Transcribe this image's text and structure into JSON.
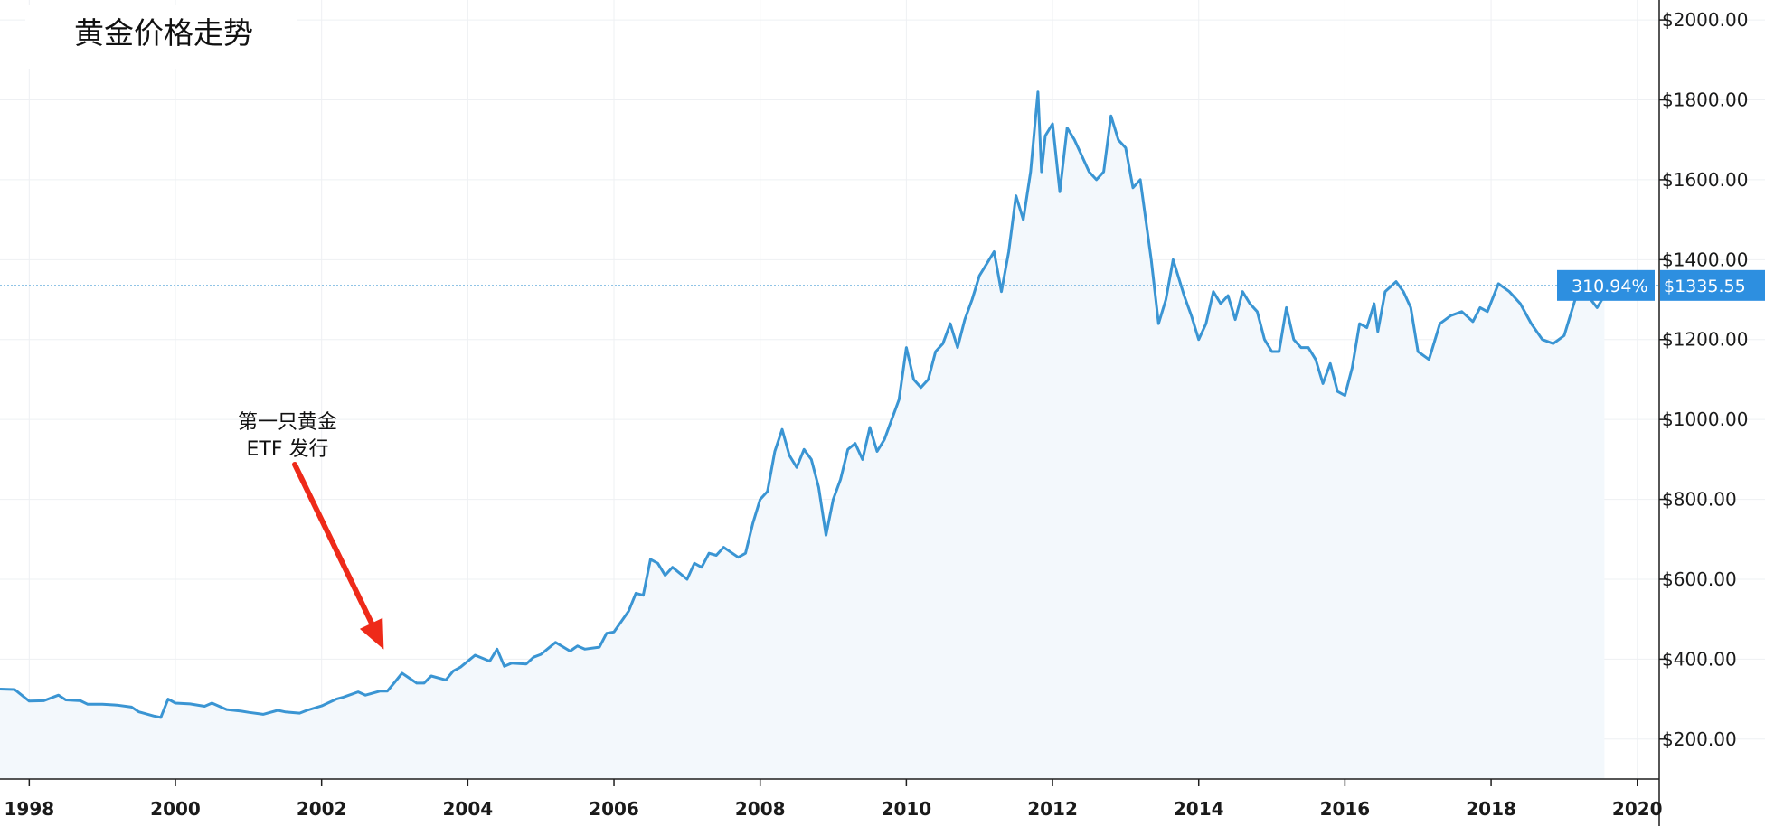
{
  "chart_data": {
    "type": "line",
    "title": "黄金价格走势",
    "xlabel": "",
    "ylabel": "",
    "x_ticks": [
      "1998",
      "2000",
      "2002",
      "2004",
      "2006",
      "2008",
      "2010",
      "2012",
      "2014",
      "2016",
      "2018",
      "2020"
    ],
    "y_ticks": [
      "$200.00",
      "$400.00",
      "$600.00",
      "$800.00",
      "$1000.00",
      "$1200.00",
      "$1400.00",
      "$1600.00",
      "$1800.00",
      "$2000.00"
    ],
    "xlim": [
      1997.6,
      2020.3
    ],
    "ylim": [
      100,
      2050
    ],
    "grid": true,
    "current": {
      "value": 1335.55,
      "value_label": "$1335.55",
      "change_label": "310.94%"
    },
    "annotation": {
      "text_line1": "第一只黄金",
      "text_line2": "ETF 发行",
      "x": 2002.9,
      "y": 370
    },
    "colors": {
      "line": "#3a95d3",
      "fill": "#f3f8fc",
      "badge": "#2d8fe0",
      "arrow": "#ee2a19"
    },
    "series": [
      {
        "values": [
          [
            1997.6,
            325
          ],
          [
            1997.8,
            324
          ],
          [
            1998.0,
            295
          ],
          [
            1998.2,
            296
          ],
          [
            1998.4,
            310
          ],
          [
            1998.5,
            298
          ],
          [
            1998.7,
            296
          ],
          [
            1998.8,
            287
          ],
          [
            1999.0,
            287
          ],
          [
            1999.2,
            285
          ],
          [
            1999.4,
            280
          ],
          [
            1999.5,
            268
          ],
          [
            1999.7,
            258
          ],
          [
            1999.8,
            254
          ],
          [
            1999.9,
            300
          ],
          [
            2000.0,
            290
          ],
          [
            2000.2,
            288
          ],
          [
            2000.4,
            282
          ],
          [
            2000.5,
            290
          ],
          [
            2000.7,
            274
          ],
          [
            2000.9,
            270
          ],
          [
            2001.0,
            267
          ],
          [
            2001.2,
            262
          ],
          [
            2001.4,
            272
          ],
          [
            2001.5,
            268
          ],
          [
            2001.7,
            265
          ],
          [
            2001.8,
            272
          ],
          [
            2002.0,
            283
          ],
          [
            2002.2,
            300
          ],
          [
            2002.3,
            305
          ],
          [
            2002.5,
            318
          ],
          [
            2002.6,
            310
          ],
          [
            2002.8,
            320
          ],
          [
            2002.9,
            320
          ],
          [
            2003.0,
            342
          ],
          [
            2003.1,
            365
          ],
          [
            2003.3,
            340
          ],
          [
            2003.4,
            340
          ],
          [
            2003.5,
            358
          ],
          [
            2003.7,
            348
          ],
          [
            2003.8,
            370
          ],
          [
            2003.9,
            380
          ],
          [
            2004.0,
            395
          ],
          [
            2004.1,
            410
          ],
          [
            2004.3,
            395
          ],
          [
            2004.4,
            425
          ],
          [
            2004.5,
            382
          ],
          [
            2004.6,
            390
          ],
          [
            2004.8,
            388
          ],
          [
            2004.9,
            405
          ],
          [
            2005.0,
            412
          ],
          [
            2005.2,
            442
          ],
          [
            2005.4,
            420
          ],
          [
            2005.5,
            433
          ],
          [
            2005.6,
            425
          ],
          [
            2005.8,
            430
          ],
          [
            2005.9,
            465
          ],
          [
            2006.0,
            468
          ],
          [
            2006.2,
            520
          ],
          [
            2006.3,
            565
          ],
          [
            2006.4,
            560
          ],
          [
            2006.5,
            650
          ],
          [
            2006.6,
            640
          ],
          [
            2006.7,
            610
          ],
          [
            2006.8,
            630
          ],
          [
            2006.9,
            615
          ],
          [
            2007.0,
            600
          ],
          [
            2007.1,
            640
          ],
          [
            2007.2,
            630
          ],
          [
            2007.3,
            665
          ],
          [
            2007.4,
            660
          ],
          [
            2007.5,
            680
          ],
          [
            2007.7,
            655
          ],
          [
            2007.8,
            665
          ],
          [
            2007.9,
            740
          ],
          [
            2008.0,
            800
          ],
          [
            2008.1,
            820
          ],
          [
            2008.2,
            920
          ],
          [
            2008.3,
            975
          ],
          [
            2008.4,
            910
          ],
          [
            2008.5,
            880
          ],
          [
            2008.6,
            925
          ],
          [
            2008.7,
            900
          ],
          [
            2008.8,
            830
          ],
          [
            2008.9,
            710
          ],
          [
            2009.0,
            800
          ],
          [
            2009.1,
            850
          ],
          [
            2009.2,
            925
          ],
          [
            2009.3,
            940
          ],
          [
            2009.4,
            900
          ],
          [
            2009.5,
            980
          ],
          [
            2009.6,
            920
          ],
          [
            2009.7,
            950
          ],
          [
            2009.8,
            1000
          ],
          [
            2009.9,
            1050
          ],
          [
            2010.0,
            1180
          ],
          [
            2010.1,
            1100
          ],
          [
            2010.2,
            1080
          ],
          [
            2010.3,
            1100
          ],
          [
            2010.4,
            1170
          ],
          [
            2010.5,
            1190
          ],
          [
            2010.6,
            1240
          ],
          [
            2010.7,
            1180
          ],
          [
            2010.8,
            1250
          ],
          [
            2010.9,
            1300
          ],
          [
            2011.0,
            1360
          ],
          [
            2011.1,
            1390
          ],
          [
            2011.2,
            1420
          ],
          [
            2011.3,
            1320
          ],
          [
            2011.4,
            1420
          ],
          [
            2011.5,
            1560
          ],
          [
            2011.6,
            1500
          ],
          [
            2011.7,
            1620
          ],
          [
            2011.8,
            1820
          ],
          [
            2011.85,
            1620
          ],
          [
            2011.9,
            1710
          ],
          [
            2012.0,
            1740
          ],
          [
            2012.1,
            1570
          ],
          [
            2012.2,
            1730
          ],
          [
            2012.3,
            1700
          ],
          [
            2012.4,
            1660
          ],
          [
            2012.5,
            1620
          ],
          [
            2012.6,
            1600
          ],
          [
            2012.7,
            1620
          ],
          [
            2012.8,
            1760
          ],
          [
            2012.9,
            1700
          ],
          [
            2013.0,
            1680
          ],
          [
            2013.1,
            1580
          ],
          [
            2013.2,
            1600
          ],
          [
            2013.35,
            1400
          ],
          [
            2013.45,
            1240
          ],
          [
            2013.55,
            1300
          ],
          [
            2013.65,
            1400
          ],
          [
            2013.8,
            1310
          ],
          [
            2013.9,
            1260
          ],
          [
            2014.0,
            1200
          ],
          [
            2014.1,
            1240
          ],
          [
            2014.2,
            1320
          ],
          [
            2014.3,
            1290
          ],
          [
            2014.4,
            1310
          ],
          [
            2014.5,
            1250
          ],
          [
            2014.6,
            1320
          ],
          [
            2014.7,
            1290
          ],
          [
            2014.8,
            1270
          ],
          [
            2014.9,
            1200
          ],
          [
            2015.0,
            1170
          ],
          [
            2015.1,
            1170
          ],
          [
            2015.2,
            1280
          ],
          [
            2015.3,
            1200
          ],
          [
            2015.4,
            1180
          ],
          [
            2015.5,
            1180
          ],
          [
            2015.6,
            1150
          ],
          [
            2015.7,
            1090
          ],
          [
            2015.8,
            1140
          ],
          [
            2015.9,
            1070
          ],
          [
            2016.0,
            1060
          ],
          [
            2016.1,
            1130
          ],
          [
            2016.2,
            1240
          ],
          [
            2016.3,
            1230
          ],
          [
            2016.4,
            1290
          ],
          [
            2016.45,
            1220
          ],
          [
            2016.55,
            1320
          ],
          [
            2016.7,
            1345
          ],
          [
            2016.8,
            1320
          ],
          [
            2016.9,
            1280
          ],
          [
            2017.0,
            1170
          ],
          [
            2017.15,
            1150
          ],
          [
            2017.3,
            1240
          ],
          [
            2017.45,
            1260
          ],
          [
            2017.6,
            1270
          ],
          [
            2017.75,
            1245
          ],
          [
            2017.85,
            1280
          ],
          [
            2017.95,
            1270
          ],
          [
            2018.1,
            1340
          ],
          [
            2018.25,
            1320
          ],
          [
            2018.4,
            1290
          ],
          [
            2018.55,
            1240
          ],
          [
            2018.7,
            1200
          ],
          [
            2018.85,
            1190
          ],
          [
            2019.0,
            1210
          ],
          [
            2019.15,
            1300
          ],
          [
            2019.3,
            1315
          ],
          [
            2019.45,
            1280
          ],
          [
            2019.55,
            1310
          ]
        ]
      }
    ]
  }
}
